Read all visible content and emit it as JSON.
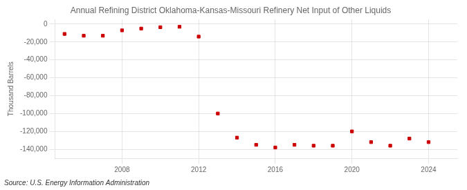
{
  "chart_data": {
    "type": "scatter",
    "title": "Annual Refining District Oklahoma-Kansas-Missouri Refinery Net Input of Other Liquids",
    "ylabel": "Thousand Barrels",
    "annotation": "Source: U.S. Energy Information Administration",
    "x": [
      2005,
      2006,
      2007,
      2008,
      2009,
      2010,
      2011,
      2012,
      2013,
      2014,
      2015,
      2016,
      2017,
      2018,
      2019,
      2020,
      2021,
      2022,
      2023,
      2024
    ],
    "values": [
      -11000,
      -13000,
      -13000,
      -7000,
      -5000,
      -3500,
      -3000,
      -14000,
      -100000,
      -127000,
      -135000,
      -138000,
      -135000,
      -136000,
      -136000,
      -120000,
      -132000,
      -136000,
      -128000,
      -132000
    ],
    "color": "#cc0000",
    "marker": "square",
    "grid": true,
    "xlim": [
      2004.5,
      2025.5
    ],
    "xticks": [
      2008,
      2012,
      2016,
      2020,
      2024
    ],
    "ylim": [
      -150000,
      5000
    ],
    "yticks": [
      0,
      {
        "value": -20000,
        "label": "-20,000"
      },
      {
        "value": -40000,
        "label": "-40,000"
      },
      {
        "value": -60000,
        "label": "-60,000"
      },
      {
        "value": -80000,
        "label": "-80,000"
      },
      {
        "value": -100000,
        "label": "-100,000"
      },
      {
        "value": -120000,
        "label": "-120,000"
      },
      {
        "value": -140000,
        "label": "-140,000"
      }
    ]
  }
}
